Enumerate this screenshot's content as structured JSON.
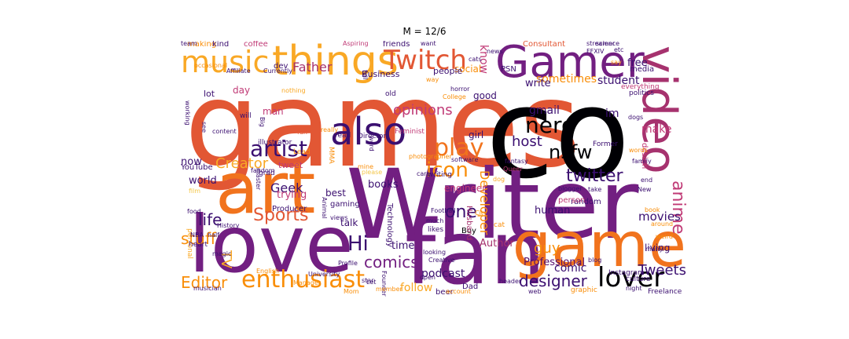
{
  "title": "M = 12/6",
  "colors": {
    "black": "#000004",
    "dark_navy": "#1f0c48",
    "deep_purple": "#3b0f70",
    "purple": "#57106e",
    "violet": "#721f81",
    "plum": "#8c2981",
    "magenta": "#a6326e",
    "rose": "#c03a76",
    "red": "#d74b3f",
    "red_orange": "#e25734",
    "orange": "#f1731d",
    "amber": "#f98e09",
    "gold": "#f9a825",
    "yellow": "#f3c74b"
  },
  "words": [
    {
      "t": "games",
      "c": "red_orange"
    },
    {
      "t": "co",
      "c": "black"
    },
    {
      "t": "Writer",
      "c": "violet"
    },
    {
      "t": "art",
      "c": "orange"
    },
    {
      "t": "love",
      "c": "violet"
    },
    {
      "t": "fan",
      "c": "violet"
    },
    {
      "t": "game",
      "c": "orange"
    },
    {
      "t": "Gamer",
      "c": "violet"
    },
    {
      "t": "video",
      "c": "magenta"
    },
    {
      "t": "things",
      "c": "gold"
    },
    {
      "t": "music",
      "c": "gold"
    },
    {
      "t": "Twitch",
      "c": "red_orange"
    },
    {
      "t": "also",
      "c": "deep_purple"
    },
    {
      "t": "artist",
      "c": "deep_purple"
    },
    {
      "t": "play",
      "c": "orange"
    },
    {
      "t": "nerd",
      "c": "black"
    },
    {
      "t": "nsfw",
      "c": "black"
    },
    {
      "t": "enthusiast",
      "c": "amber"
    },
    {
      "t": "lover",
      "c": "black"
    },
    {
      "t": "twitter",
      "c": "deep_purple"
    },
    {
      "t": "icon",
      "c": "amber"
    },
    {
      "t": "Sports",
      "c": "red_orange"
    },
    {
      "t": "Editor",
      "c": "amber"
    },
    {
      "t": "designer",
      "c": "deep_purple"
    },
    {
      "t": "anime",
      "c": "rose"
    },
    {
      "t": "comics",
      "c": "violet"
    },
    {
      "t": "Hi",
      "c": "deep_purple"
    },
    {
      "t": "one",
      "c": "deep_purple"
    },
    {
      "t": "host",
      "c": "deep_purple"
    },
    {
      "t": "opinions",
      "c": "rose"
    },
    {
      "t": "Creator",
      "c": "gold"
    },
    {
      "t": "life",
      "c": "deep_purple"
    },
    {
      "t": "stuff",
      "c": "amber"
    },
    {
      "t": "Father",
      "c": "magenta"
    },
    {
      "t": "Developer",
      "c": "amber"
    },
    {
      "t": "guy",
      "c": "amber"
    },
    {
      "t": "Tweets",
      "c": "deep_purple"
    },
    {
      "t": "sometimes",
      "c": "amber"
    },
    {
      "t": "student",
      "c": "deep_purple"
    },
    {
      "t": "movies",
      "c": "deep_purple"
    },
    {
      "t": "Geek",
      "c": "deep_purple"
    },
    {
      "t": "TV",
      "c": "gold"
    },
    {
      "t": "im",
      "c": "deep_purple"
    },
    {
      "t": "gmail",
      "c": "deep_purple"
    },
    {
      "t": "make",
      "c": "rose"
    },
    {
      "t": "follow",
      "c": "gold"
    },
    {
      "t": "podcast",
      "c": "deep_purple"
    },
    {
      "t": "comic",
      "c": "deep_purple"
    },
    {
      "t": "Author",
      "c": "magenta"
    },
    {
      "t": "Professional",
      "c": "purple"
    },
    {
      "t": "human",
      "c": "deep_purple"
    },
    {
      "t": "world",
      "c": "deep_purple"
    },
    {
      "t": "now",
      "c": "deep_purple"
    },
    {
      "t": "know",
      "c": "rose"
    },
    {
      "t": "free",
      "c": "deep_purple"
    },
    {
      "t": "write",
      "c": "deep_purple"
    },
    {
      "t": "trying",
      "c": "rose"
    },
    {
      "t": "living",
      "c": "deep_purple"
    },
    {
      "t": "talk",
      "c": "deep_purple"
    },
    {
      "t": "best",
      "c": "deep_purple"
    },
    {
      "t": "time",
      "c": "deep_purple"
    },
    {
      "t": "books",
      "c": "deep_purple"
    },
    {
      "t": "engineer",
      "c": "rose"
    },
    {
      "t": "girl",
      "c": "deep_purple"
    },
    {
      "t": "good",
      "c": "deep_purple"
    },
    {
      "t": "tweet",
      "c": "rose"
    },
    {
      "t": "coffee",
      "c": "rose"
    },
    {
      "t": "making",
      "c": "amber"
    },
    {
      "t": "kind",
      "c": "deep_purple"
    },
    {
      "t": "day",
      "c": "rose"
    },
    {
      "t": "man",
      "c": "rose"
    },
    {
      "t": "social",
      "c": "amber"
    },
    {
      "t": "lot",
      "c": "deep_purple"
    },
    {
      "t": "people",
      "c": "deep_purple"
    },
    {
      "t": "Business",
      "c": "deep_purple"
    },
    {
      "t": "Consultant",
      "c": "red_orange"
    },
    {
      "t": "friends",
      "c": "deep_purple"
    },
    {
      "t": "dev",
      "c": "deep_purple"
    },
    {
      "t": "Affiliate",
      "c": "deep_purple"
    },
    {
      "t": "Currently",
      "c": "deep_purple"
    },
    {
      "t": "media",
      "c": "deep_purple"
    },
    {
      "t": "PSN",
      "c": "deep_purple"
    },
    {
      "t": "YouTube",
      "c": "deep_purple"
    },
    {
      "t": "Producer",
      "c": "deep_purple"
    },
    {
      "t": "gaming",
      "c": "deep_purple"
    },
    {
      "t": "personal",
      "c": "gold"
    },
    {
      "t": "heart",
      "c": "deep_purple"
    },
    {
      "t": "Boy",
      "c": "black"
    },
    {
      "t": "Dad",
      "c": "deep_purple"
    },
    {
      "t": "beer",
      "c": "deep_purple"
    },
    {
      "t": "Instagram",
      "c": "deep_purple"
    },
    {
      "t": "culture",
      "c": "deep_purple"
    },
    {
      "t": "Freelance",
      "c": "deep_purple"
    },
    {
      "t": "random",
      "c": "deep_purple"
    },
    {
      "t": "person",
      "c": "rose"
    },
    {
      "t": "cat",
      "c": "amber"
    },
    {
      "t": "likes",
      "c": "deep_purple"
    },
    {
      "t": "Husband",
      "c": "magenta"
    },
    {
      "t": "Technology",
      "c": "deep_purple"
    },
    {
      "t": "design",
      "c": "rose"
    },
    {
      "t": "everything",
      "c": "rose"
    },
    {
      "t": "politics",
      "c": "deep_purple"
    },
    {
      "t": "Former",
      "c": "deep_purple"
    },
    {
      "t": "will",
      "c": "deep_purple"
    },
    {
      "t": "working",
      "c": "deep_purple"
    },
    {
      "t": "grad",
      "c": "deep_purple"
    },
    {
      "t": "illustrator",
      "c": "deep_purple"
    },
    {
      "t": "MMA",
      "c": "amber"
    },
    {
      "t": "Director",
      "c": "deep_purple"
    },
    {
      "t": "Feminist",
      "c": "rose"
    },
    {
      "t": "writing",
      "c": "deep_purple"
    },
    {
      "t": "software",
      "c": "deep_purple"
    },
    {
      "t": "photographer",
      "c": "amber"
    },
    {
      "t": "old",
      "c": "deep_purple"
    },
    {
      "t": "horror",
      "c": "deep_purple"
    },
    {
      "t": "College",
      "c": "amber"
    },
    {
      "t": "way",
      "c": "amber"
    },
    {
      "t": "full",
      "c": "deep_purple"
    },
    {
      "t": "say",
      "c": "amber"
    },
    {
      "t": "streamer",
      "c": "deep_purple"
    },
    {
      "t": "science",
      "c": "deep_purple"
    },
    {
      "t": "etc",
      "c": "deep_purple"
    },
    {
      "t": "want",
      "c": "deep_purple"
    },
    {
      "t": "Aspiring",
      "c": "rose"
    },
    {
      "t": "occasional",
      "c": "amber"
    },
    {
      "t": "nothing",
      "c": "gold"
    },
    {
      "t": "really",
      "c": "amber"
    },
    {
      "t": "fun",
      "c": "red_orange"
    },
    {
      "t": "read",
      "c": "deep_purple"
    },
    {
      "t": "Lead",
      "c": "amber"
    },
    {
      "t": "master",
      "c": "deep_purple"
    },
    {
      "t": "fandom",
      "c": "deep_purple"
    },
    {
      "t": "film",
      "c": "yellow"
    },
    {
      "t": "food",
      "c": "deep_purple"
    },
    {
      "t": "NBA",
      "c": "deep_purple"
    },
    {
      "t": "half",
      "c": "deep_purple"
    },
    {
      "t": "History",
      "c": "deep_purple"
    },
    {
      "t": "magic",
      "c": "deep_purple"
    },
    {
      "t": "English",
      "c": "amber"
    },
    {
      "t": "University",
      "c": "deep_purple"
    },
    {
      "t": "musician",
      "c": "deep_purple"
    },
    {
      "t": "Manager",
      "c": "amber"
    },
    {
      "t": "Animal",
      "c": "deep_purple"
    },
    {
      "t": "views",
      "c": "deep_purple"
    },
    {
      "t": "Profile",
      "c": "deep_purple"
    },
    {
      "t": "Mom",
      "c": "amber"
    },
    {
      "t": "open",
      "c": "deep_purple"
    },
    {
      "t": "Creative",
      "c": "deep_purple"
    },
    {
      "t": "looking",
      "c": "deep_purple"
    },
    {
      "t": "Founder",
      "c": "deep_purple"
    },
    {
      "t": "City",
      "c": "amber"
    },
    {
      "t": "much",
      "c": "deep_purple"
    },
    {
      "t": "header",
      "c": "deep_purple"
    },
    {
      "t": "web",
      "c": "deep_purple"
    },
    {
      "t": "account",
      "c": "amber"
    },
    {
      "t": "graphic",
      "c": "amber"
    },
    {
      "t": "night",
      "c": "deep_purple"
    },
    {
      "t": "member",
      "c": "amber"
    },
    {
      "t": "Let",
      "c": "deep_purple"
    },
    {
      "t": "take",
      "c": "deep_purple"
    },
    {
      "t": "star",
      "c": "deep_purple"
    },
    {
      "t": "blog",
      "c": "deep_purple"
    },
    {
      "t": "around",
      "c": "amber"
    },
    {
      "t": "book",
      "c": "amber"
    },
    {
      "t": "weird",
      "c": "amber"
    },
    {
      "t": "many",
      "c": "deep_purple"
    },
    {
      "t": "end",
      "c": "deep_purple"
    },
    {
      "t": "New",
      "c": "deep_purple"
    },
    {
      "t": "blogger",
      "c": "deep_purple"
    },
    {
      "t": "family",
      "c": "deep_purple"
    },
    {
      "t": "words",
      "c": "amber"
    },
    {
      "t": "dogs",
      "c": "deep_purple"
    },
    {
      "t": "dog",
      "c": "gold"
    },
    {
      "t": "fantasy",
      "c": "deep_purple"
    },
    {
      "t": "FFXIV",
      "c": "deep_purple"
    },
    {
      "t": "see",
      "c": "deep_purple"
    },
    {
      "t": "Big",
      "c": "deep_purple"
    },
    {
      "t": "cats",
      "c": "deep_purple"
    },
    {
      "t": "news",
      "c": "deep_purple"
    },
    {
      "t": "word",
      "c": "deep_purple"
    },
    {
      "t": "Queer",
      "c": "rose"
    },
    {
      "t": "mine",
      "c": "amber"
    },
    {
      "t": "please",
      "c": "yellow"
    },
    {
      "t": "Football",
      "c": "deep_purple"
    },
    {
      "t": "care",
      "c": "deep_purple"
    },
    {
      "t": "content",
      "c": "deep_purple"
    },
    {
      "t": "team",
      "c": "deep_purple"
    }
  ]
}
